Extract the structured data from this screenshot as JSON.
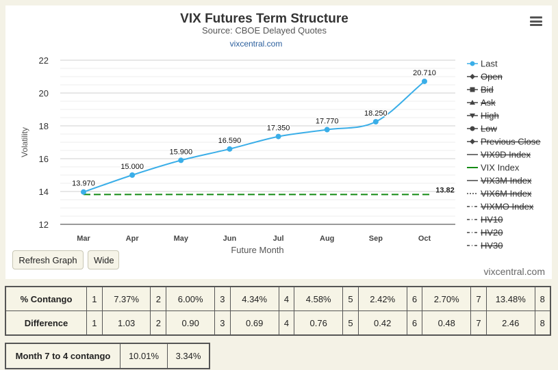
{
  "chart_data": {
    "type": "line",
    "title": "VIX Futures Term Structure",
    "subtitle": "Source: CBOE Delayed Quotes",
    "link": "vixcentral.com",
    "categories": [
      "Mar",
      "Apr",
      "May",
      "Jun",
      "Jul",
      "Aug",
      "Sep",
      "Oct"
    ],
    "series": [
      {
        "name": "Last",
        "values": [
          13.97,
          15.0,
          15.9,
          16.59,
          17.35,
          17.77,
          18.25,
          20.71
        ],
        "labels": [
          "13.970",
          "15.000",
          "15.900",
          "16.590",
          "17.350",
          "17.770",
          "18.250",
          "20.710"
        ],
        "color": "#3aaee8"
      },
      {
        "name": "VIX Index",
        "value": 13.82,
        "label": "13.82",
        "color": "#138a13"
      }
    ],
    "xlabel": "Future Month",
    "ylabel": "Volatility",
    "ylim": [
      12,
      22
    ],
    "yticks": [
      "12",
      "14",
      "16",
      "18",
      "20",
      "22"
    ],
    "grid": true,
    "legend_position": "right",
    "legend": [
      {
        "label": "Last",
        "marker": "circle",
        "enabled": true
      },
      {
        "label": "Open",
        "marker": "diamond",
        "enabled": false
      },
      {
        "label": "Bid",
        "marker": "square",
        "enabled": false
      },
      {
        "label": "Ask",
        "marker": "triangle",
        "enabled": false
      },
      {
        "label": "High",
        "marker": "triangle-down",
        "enabled": false
      },
      {
        "label": "Low",
        "marker": "circle",
        "enabled": false
      },
      {
        "label": "Previous Close",
        "marker": "diamond",
        "enabled": false
      },
      {
        "label": "VIX9D Index",
        "marker": "line",
        "enabled": false
      },
      {
        "label": "VIX Index",
        "marker": "line-green",
        "enabled": true
      },
      {
        "label": "VIX3M Index",
        "marker": "line",
        "enabled": false
      },
      {
        "label": "VIX6M Index",
        "marker": "dotted",
        "enabled": false
      },
      {
        "label": "VIXMO Index",
        "marker": "dash-dot",
        "enabled": false
      },
      {
        "label": "HV10",
        "marker": "dash-dot",
        "enabled": false
      },
      {
        "label": "HV20",
        "marker": "dash-dot",
        "enabled": false
      },
      {
        "label": "HV30",
        "marker": "dash-dot",
        "enabled": false
      }
    ]
  },
  "controls": {
    "refresh_label": "Refresh Graph",
    "wide_label": "Wide",
    "credit": "vixcentral.com"
  },
  "contango_table": {
    "rows": [
      {
        "label": "% Contango",
        "cells": [
          "1",
          "7.37%",
          "2",
          "6.00%",
          "3",
          "4.34%",
          "4",
          "4.58%",
          "5",
          "2.42%",
          "6",
          "2.70%",
          "7",
          "13.48%",
          "8"
        ]
      },
      {
        "label": "Difference",
        "cells": [
          "1",
          "1.03",
          "2",
          "0.90",
          "3",
          "0.69",
          "4",
          "0.76",
          "5",
          "0.42",
          "6",
          "0.48",
          "7",
          "2.46",
          "8"
        ]
      }
    ]
  },
  "month_table": {
    "label": "Month 7 to 4 contango",
    "values": [
      "10.01%",
      "3.34%"
    ]
  }
}
